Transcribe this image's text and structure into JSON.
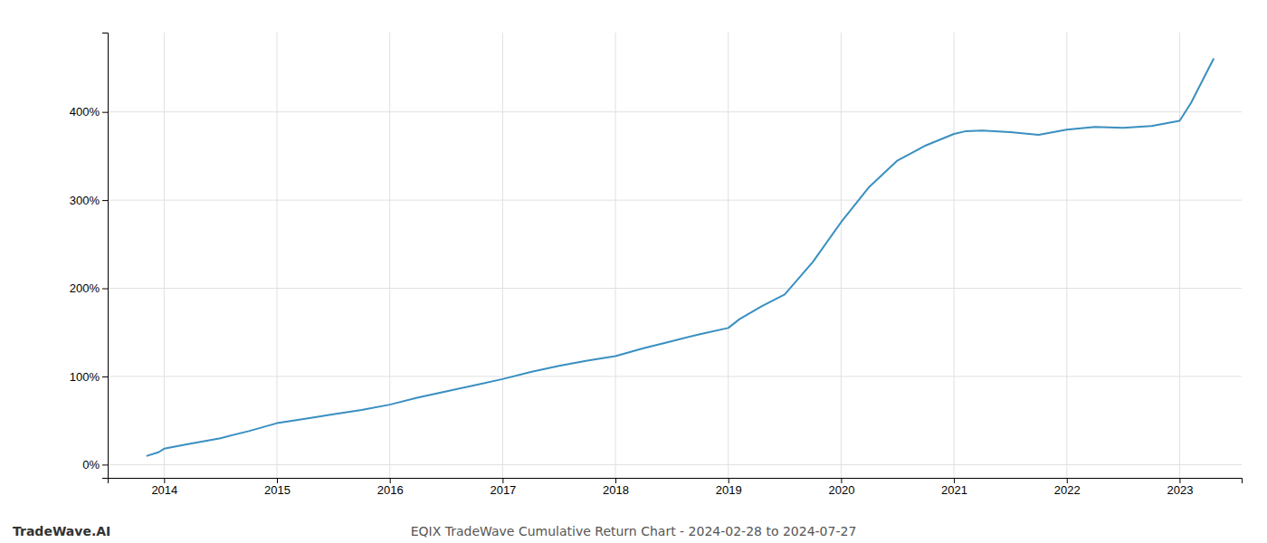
{
  "chart_data": {
    "type": "line",
    "title": "EQIX TradeWave Cumulative Return Chart - 2024-02-28 to 2024-07-27",
    "annotations": [
      "TradeWave.AI"
    ],
    "color": "#3a8fc1",
    "grid": true,
    "x": [
      2013.85,
      2013.95,
      2014.0,
      2014.2,
      2014.5,
      2014.75,
      2015.0,
      2015.25,
      2015.5,
      2015.75,
      2016.0,
      2016.25,
      2016.5,
      2016.75,
      2017.0,
      2017.25,
      2017.5,
      2017.75,
      2018.0,
      2018.25,
      2018.5,
      2018.75,
      2019.0,
      2019.1,
      2019.3,
      2019.5,
      2019.75,
      2020.0,
      2020.25,
      2020.5,
      2020.75,
      2021.0,
      2021.1,
      2021.25,
      2021.5,
      2021.75,
      2022.0,
      2022.25,
      2022.5,
      2022.75,
      2023.0,
      2023.1,
      2023.3
    ],
    "values": [
      10,
      14,
      18,
      23,
      30,
      38,
      47,
      52,
      57,
      62,
      68,
      76,
      83,
      90,
      97,
      105,
      112,
      118,
      123,
      132,
      140,
      148,
      155,
      165,
      180,
      193,
      230,
      275,
      315,
      345,
      362,
      375,
      378,
      379,
      377,
      374,
      380,
      383,
      382,
      384,
      390,
      410,
      460
    ],
    "xlim": [
      2013.5,
      2023.55
    ],
    "xticks": [
      2014,
      2015,
      2016,
      2017,
      2018,
      2019,
      2020,
      2021,
      2022,
      2023
    ],
    "ylim": [
      -15,
      490
    ],
    "yticks": [
      {
        "value": 0,
        "label": "0%"
      },
      {
        "value": 100,
        "label": "100%"
      },
      {
        "value": 200,
        "label": "200%"
      },
      {
        "value": 300,
        "label": "300%"
      },
      {
        "value": 400,
        "label": "400%"
      }
    ]
  }
}
